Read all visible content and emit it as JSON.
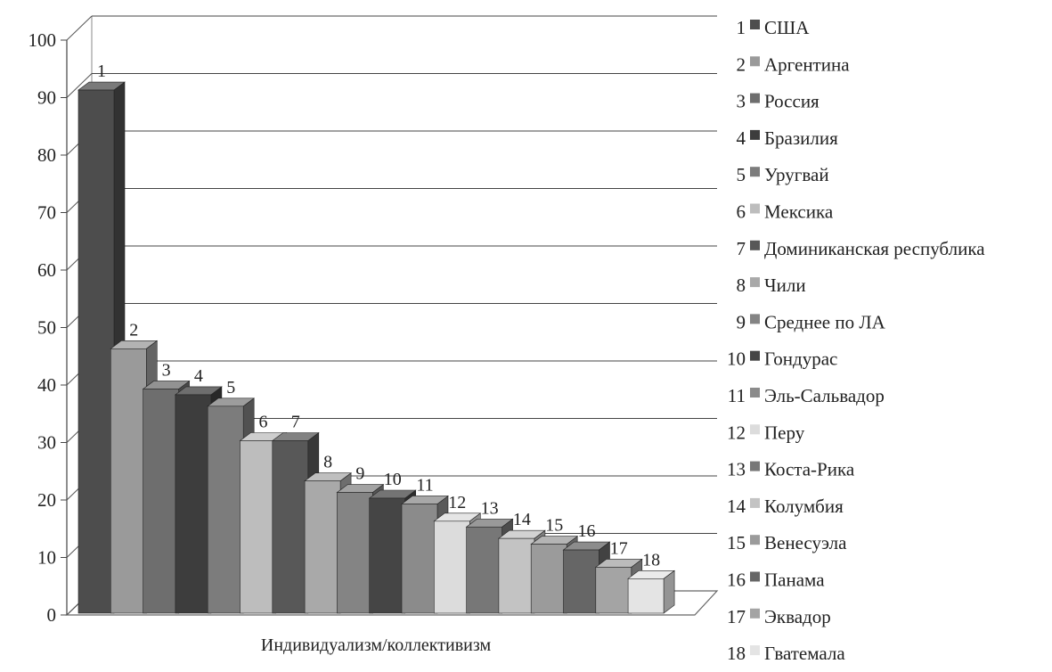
{
  "chart_data": {
    "type": "bar",
    "title": "",
    "xlabel": "Индивидуализм/коллективизм",
    "ylabel": "",
    "ylim": [
      0,
      100
    ],
    "y_ticks": [
      0,
      10,
      20,
      30,
      40,
      50,
      60,
      70,
      80,
      90,
      100
    ],
    "grid": true,
    "legend_position": "right",
    "bar_labels": [
      "1",
      "2",
      "3",
      "4",
      "5",
      "6",
      "7",
      "8",
      "9",
      "10",
      "11",
      "12",
      "13",
      "14",
      "15",
      "16",
      "17",
      "18"
    ],
    "categories": [
      "США",
      "Аргентина",
      "Россия",
      "Бразилия",
      "Уругвай",
      "Мексика",
      "Доминиканская республика",
      "Чили",
      "Среднее по ЛА",
      "Гондурас",
      "Эль-Сальвадор",
      "Перу",
      "Коста-Рика",
      "Колумбия",
      "Венесуэла",
      "Панама",
      "Эквадор",
      "Гватемала"
    ],
    "values": [
      91,
      46,
      39,
      38,
      36,
      30,
      30,
      23,
      21,
      20,
      19,
      16,
      15,
      13,
      12,
      11,
      8,
      6
    ],
    "colors": [
      "#4d4d4d",
      "#9a9a9a",
      "#6e6e6e",
      "#3d3d3d",
      "#7c7c7c",
      "#bdbdbd",
      "#585858",
      "#a9a9a9",
      "#848484",
      "#454545",
      "#8b8b8b",
      "#dcdcdc",
      "#777777",
      "#c3c3c3",
      "#9b9b9b",
      "#666666",
      "#a4a4a4",
      "#e4e4e4"
    ]
  }
}
